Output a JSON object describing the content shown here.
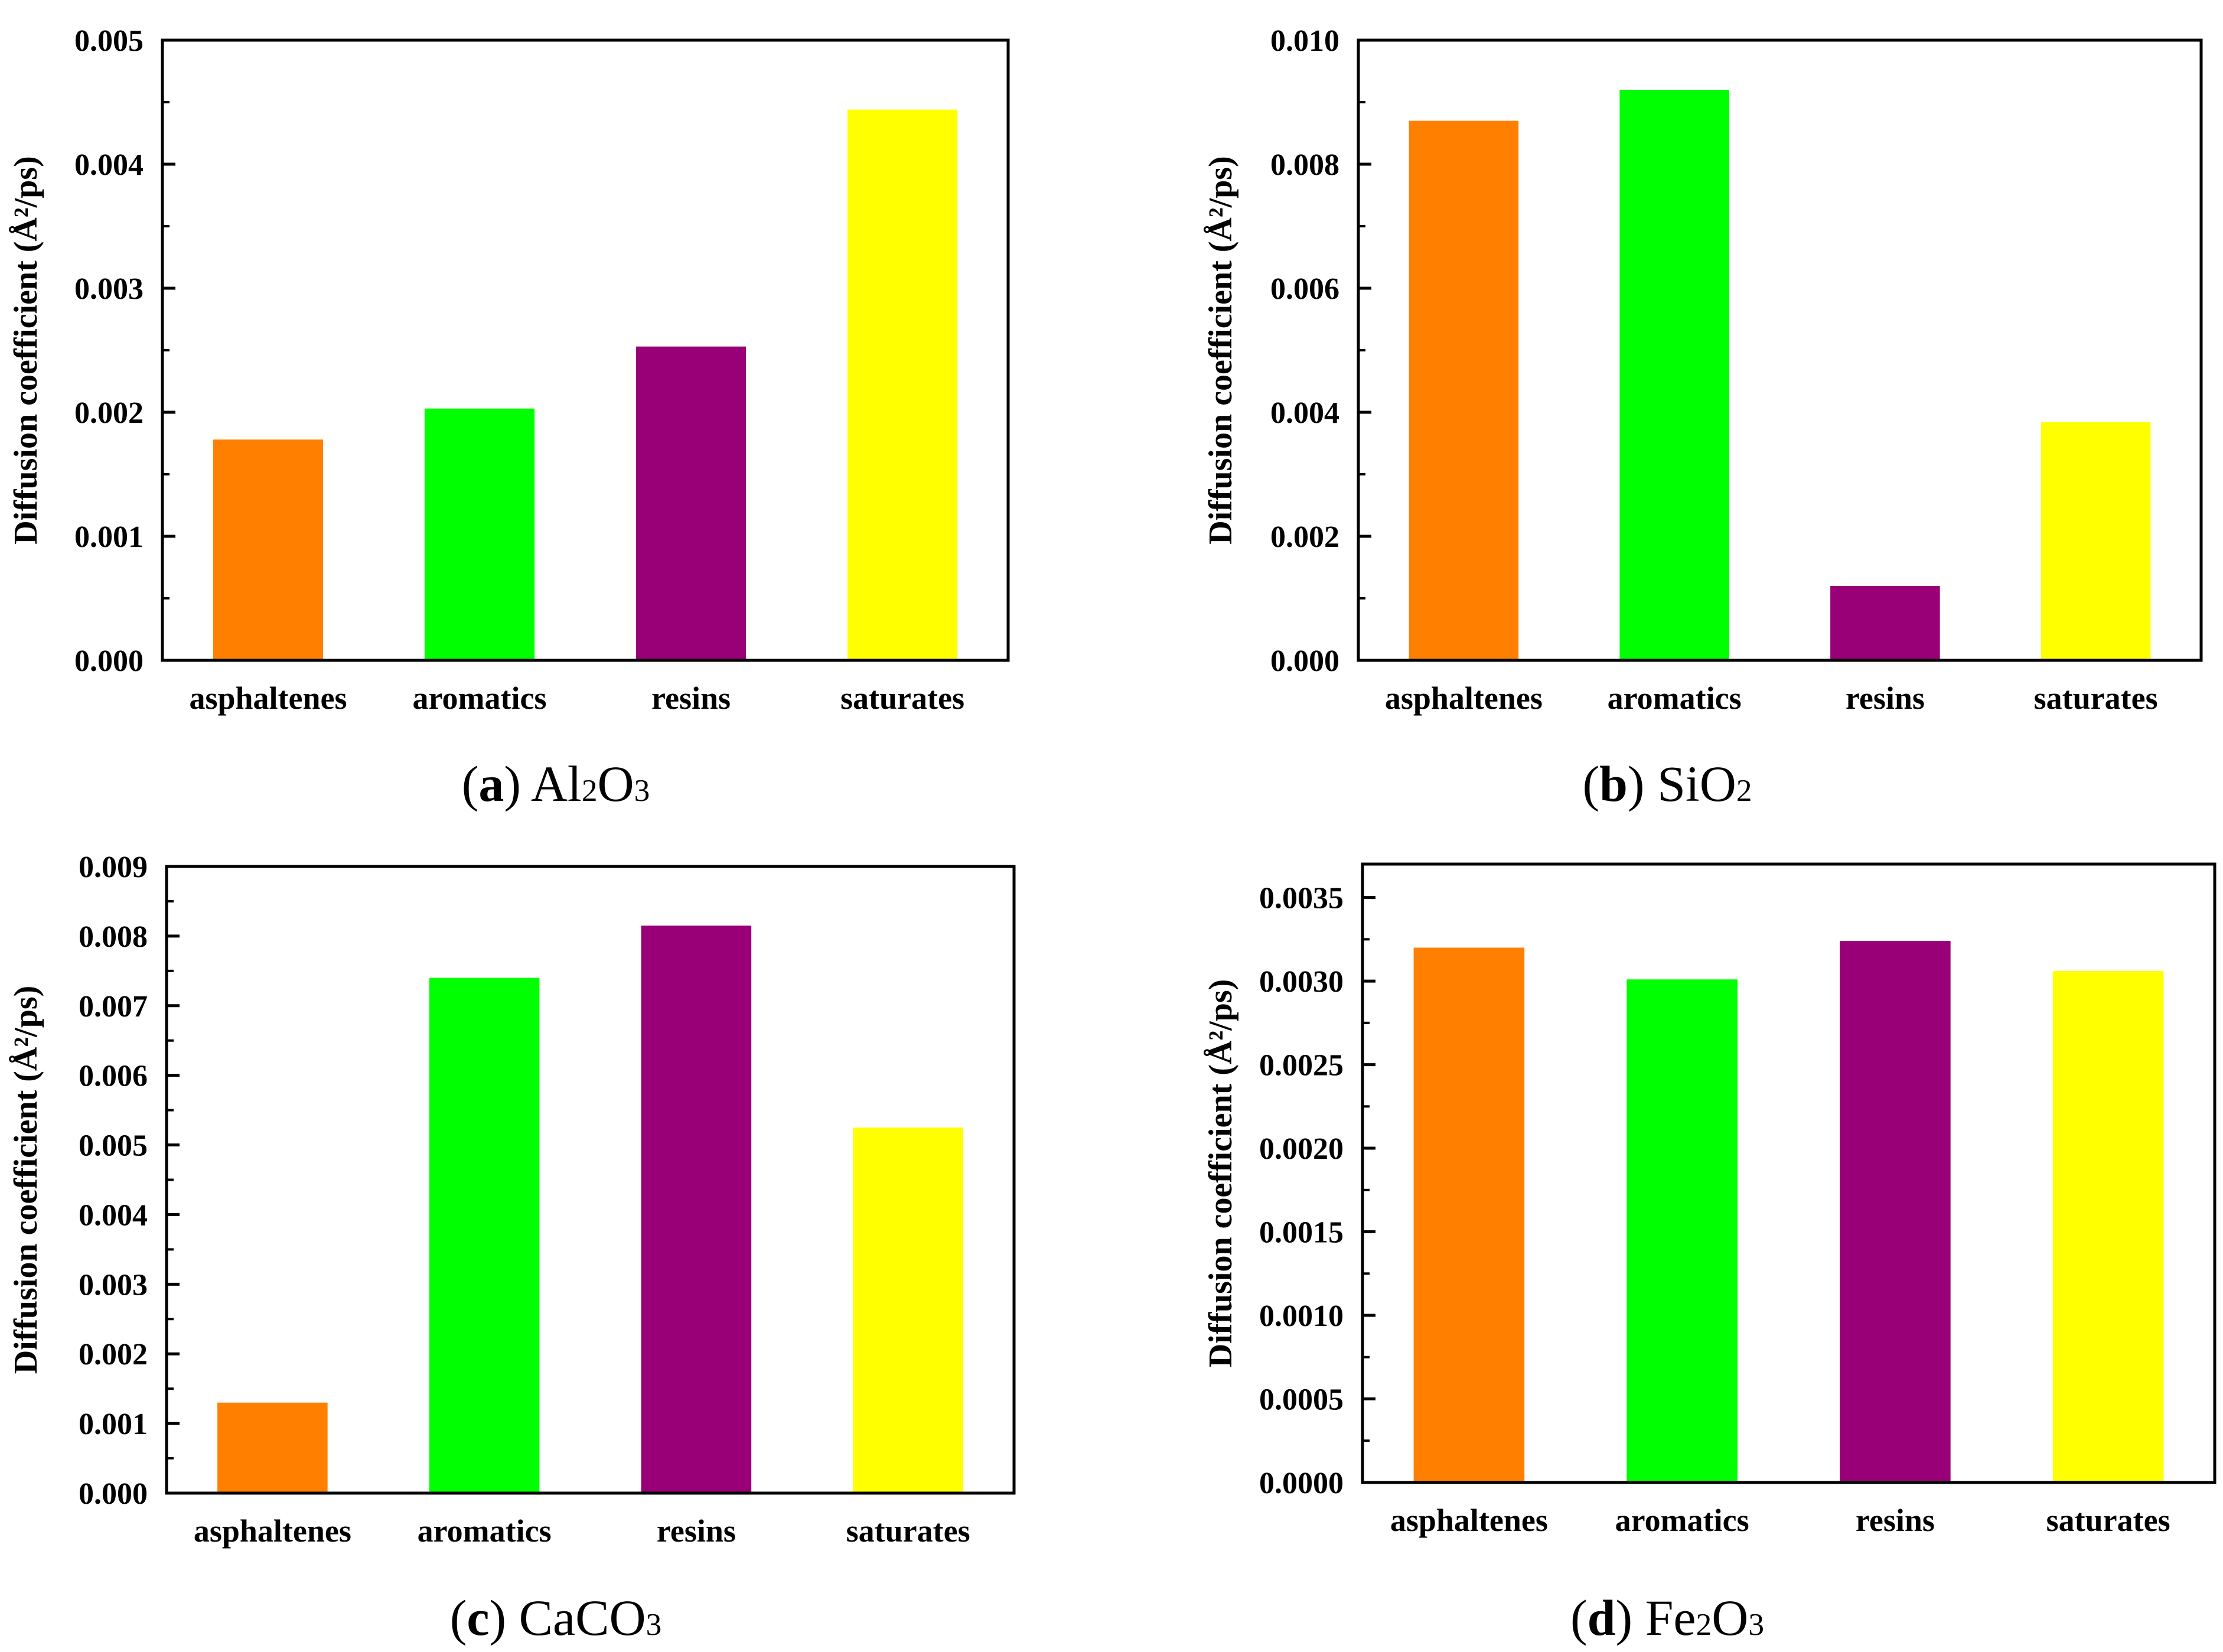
{
  "colors": {
    "asphaltenes": "#ff8000",
    "aromatics": "#00ff00",
    "resins": "#990077",
    "saturates": "#ffff00",
    "axis": "#000000"
  },
  "chart_data": [
    {
      "type": "bar",
      "panel_label": "a",
      "caption": {
        "open": "(",
        "label": "a",
        "close": ")",
        "text": "Al",
        "sub1": "2",
        "text2": "O",
        "sub2": "3",
        "text3": ""
      },
      "title": "(a) Al2O3",
      "categories": [
        "asphaltenes",
        "aromatics",
        "resins",
        "saturates"
      ],
      "values": [
        0.00178,
        0.00203,
        0.00253,
        0.00444
      ],
      "ylabel": "Diffusion coefficient (Å²/ps)",
      "xlabel": "",
      "ylim": [
        0,
        0.005
      ],
      "major_ticks": [
        0.0,
        0.001,
        0.002,
        0.003,
        0.004,
        0.005
      ],
      "tick_labels": [
        "0.000",
        "0.001",
        "0.002",
        "0.003",
        "0.004",
        "0.005"
      ],
      "grid": false
    },
    {
      "type": "bar",
      "panel_label": "b",
      "caption": {
        "open": "(",
        "label": "b",
        "close": ")",
        "text": "SiO",
        "sub1": "2",
        "text2": "",
        "sub2": "",
        "text3": ""
      },
      "title": "(b) SiO2",
      "categories": [
        "asphaltenes",
        "aromatics",
        "resins",
        "saturates"
      ],
      "values": [
        0.0087,
        0.0092,
        0.0012,
        0.00384
      ],
      "ylabel": "Diffusion coefficient (Å²/ps)",
      "xlabel": "",
      "ylim": [
        0,
        0.01
      ],
      "major_ticks": [
        0.0,
        0.002,
        0.004,
        0.006,
        0.008,
        0.01
      ],
      "tick_labels": [
        "0.000",
        "0.002",
        "0.004",
        "0.006",
        "0.008",
        "0.010"
      ],
      "grid": false
    },
    {
      "type": "bar",
      "panel_label": "c",
      "caption": {
        "open": "(",
        "label": "c",
        "close": ")",
        "text": "CaCO",
        "sub1": "3",
        "text2": "",
        "sub2": "",
        "text3": ""
      },
      "title": "(c) CaCO3",
      "categories": [
        "asphaltenes",
        "aromatics",
        "resins",
        "saturates"
      ],
      "values": [
        0.0013,
        0.0074,
        0.00815,
        0.00525
      ],
      "ylabel": "Diffusion coefficient (Å²/ps)",
      "xlabel": "",
      "ylim": [
        0,
        0.009
      ],
      "major_ticks": [
        0.0,
        0.001,
        0.002,
        0.003,
        0.004,
        0.005,
        0.006,
        0.007,
        0.008,
        0.009
      ],
      "tick_labels": [
        "0.000",
        "0.001",
        "0.002",
        "0.003",
        "0.004",
        "0.005",
        "0.006",
        "0.007",
        "0.008",
        "0.009"
      ],
      "grid": false
    },
    {
      "type": "bar",
      "panel_label": "d",
      "caption": {
        "open": "(",
        "label": "d",
        "close": ")",
        "text": "Fe",
        "sub1": "2",
        "text2": "O",
        "sub2": "3",
        "text3": ""
      },
      "title": "(d) Fe2O3",
      "categories": [
        "asphaltenes",
        "aromatics",
        "resins",
        "saturates"
      ],
      "values": [
        0.0032,
        0.00301,
        0.00324,
        0.00306
      ],
      "ylabel": "Diffusion coefficient (Å²/ps)",
      "xlabel": "",
      "ylim": [
        0,
        0.0037
      ],
      "major_ticks": [
        0.0,
        0.0005,
        0.001,
        0.0015,
        0.002,
        0.0025,
        0.003,
        0.0035
      ],
      "tick_labels": [
        "0.0000",
        "0.0005",
        "0.0010",
        "0.0015",
        "0.0020",
        "0.0025",
        "0.0030",
        "0.0035"
      ],
      "grid": false
    }
  ]
}
